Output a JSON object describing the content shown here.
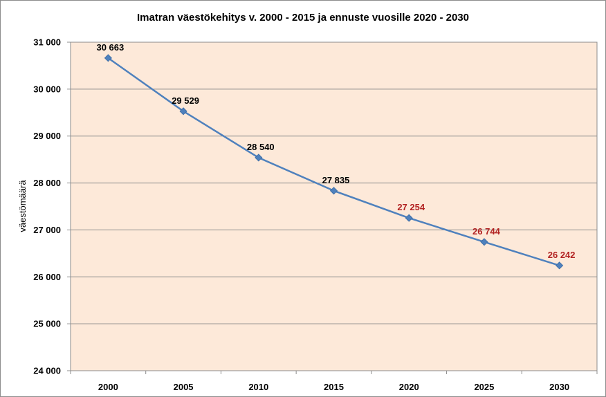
{
  "chart_data": {
    "type": "line",
    "title": "Imatran väestökehitys v. 2000 - 2015 ja ennuste vuosille 2020 - 2030",
    "xlabel": "",
    "ylabel": "väestömäärä",
    "categories": [
      "2000",
      "2005",
      "2010",
      "2015",
      "2020",
      "2025",
      "2030"
    ],
    "series": [
      {
        "values": [
          30663,
          29529,
          28540,
          27835,
          27254,
          26744,
          26242
        ],
        "data_labels": [
          "30 663",
          "29 529",
          "28 540",
          "27 835",
          "27 254",
          "26 744",
          "26 242"
        ],
        "label_colors": [
          "#000000",
          "#000000",
          "#000000",
          "#000000",
          "#b22222",
          "#b22222",
          "#b22222"
        ]
      }
    ],
    "ylim": [
      24000,
      31000
    ],
    "yticks": [
      24000,
      25000,
      26000,
      27000,
      28000,
      29000,
      30000,
      31000
    ],
    "ytick_labels": [
      "24 000",
      "25 000",
      "26 000",
      "27 000",
      "28 000",
      "29 000",
      "30 000",
      "31 000"
    ],
    "grid": true,
    "legend": "none",
    "colors": {
      "plot_background": "#fde9d9",
      "line": "#4f81bd",
      "marker": "#4f81bd",
      "gridline": "#8c8c8c",
      "historic_label": "#000000",
      "forecast_label": "#b22222"
    }
  }
}
